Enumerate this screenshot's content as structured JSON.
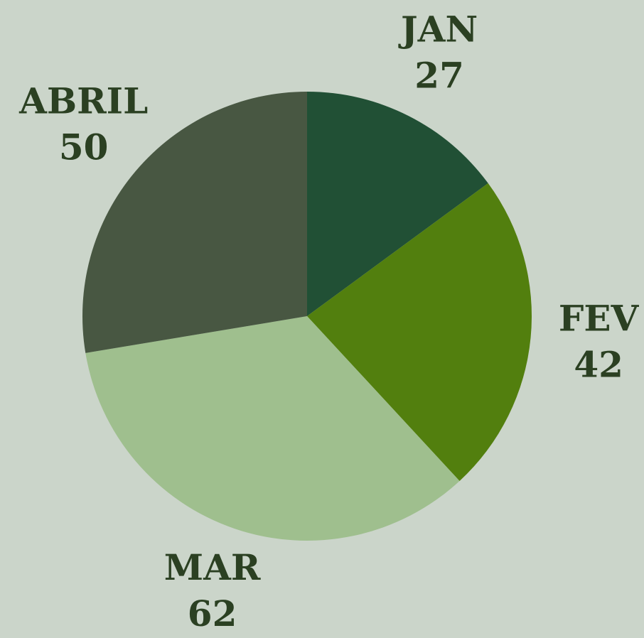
{
  "chart_data": {
    "type": "pie",
    "categories": [
      "JAN",
      "FEV",
      "MAR",
      "ABRIL"
    ],
    "values": [
      27,
      42,
      62,
      50
    ],
    "colors": [
      "#215035",
      "#527f0e",
      "#9fbf8e",
      "#485742"
    ]
  }
}
